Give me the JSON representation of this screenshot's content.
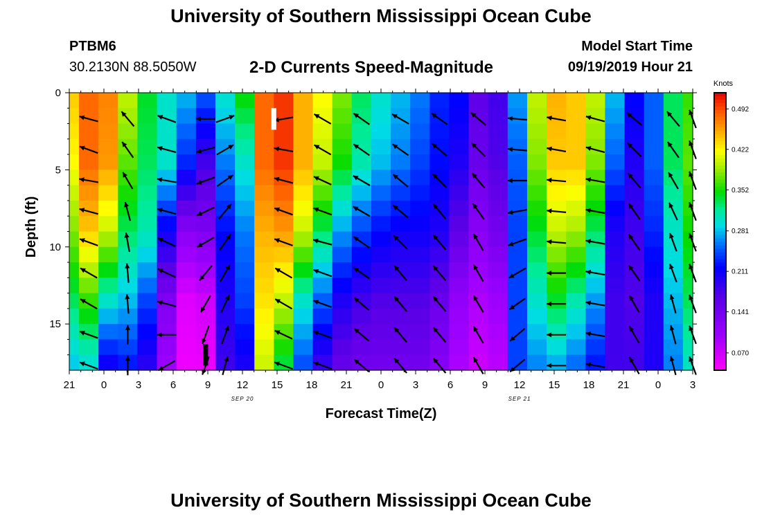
{
  "header": {
    "title": "University of Southern Mississippi Ocean Cube",
    "station_id": "PTBM6",
    "station_coords": "30.2130N 88.5050W",
    "chart_title": "2-D Currents Speed-Magnitude",
    "model_label": "Model Start Time",
    "model_time": "09/19/2019 Hour 21"
  },
  "footer": {
    "title": "University of Southern Mississippi Ocean Cube"
  },
  "chart_data": {
    "type": "heatmap",
    "title": "2-D Currents Speed-Magnitude",
    "xlabel": "Forecast Time(Z)",
    "ylabel": "Depth (ft)",
    "x_tick_labels": [
      "21",
      "0",
      "3",
      "6",
      "9",
      "12",
      "15",
      "18",
      "21",
      "0",
      "3",
      "6",
      "9",
      "12",
      "15",
      "18",
      "21",
      "0",
      "3"
    ],
    "x_date_labels": [
      {
        "label": "SEP 20",
        "at_tick": 5
      },
      {
        "label": "SEP 21",
        "at_tick": 13
      }
    ],
    "y_ticks": [
      0,
      5,
      10,
      15
    ],
    "ylim": [
      0,
      18
    ],
    "y_inverted": true,
    "colorbar": {
      "unit": "Knots",
      "tick_labels": [
        "0.492",
        "0.422",
        "0.352",
        "0.281",
        "0.211",
        "0.141",
        "0.070"
      ],
      "range": [
        0.04,
        0.52
      ]
    },
    "speed_columns": [
      {
        "t": 0,
        "s": [
          0.44,
          0.42,
          0.38,
          0.33,
          0.28
        ]
      },
      {
        "t": 1,
        "s": [
          0.48,
          0.48,
          0.44,
          0.36,
          0.29
        ]
      },
      {
        "t": 2,
        "s": [
          0.47,
          0.46,
          0.4,
          0.3,
          0.2
        ]
      },
      {
        "t": 3,
        "s": [
          0.4,
          0.37,
          0.33,
          0.28,
          0.22
        ]
      },
      {
        "t": 4,
        "s": [
          0.34,
          0.33,
          0.31,
          0.24,
          0.19
        ]
      },
      {
        "t": 5,
        "s": [
          0.3,
          0.3,
          0.21,
          0.13,
          0.1
        ]
      },
      {
        "t": 6,
        "s": [
          0.28,
          0.23,
          0.12,
          0.06,
          0.05
        ]
      },
      {
        "t": 7,
        "s": [
          0.25,
          0.18,
          0.13,
          0.07,
          0.05
        ]
      },
      {
        "t": 8,
        "s": [
          0.3,
          0.26,
          0.22,
          0.2,
          0.18
        ]
      },
      {
        "t": 9,
        "s": [
          0.35,
          0.3,
          0.26,
          0.24,
          0.2
        ]
      },
      {
        "t": 10,
        "s": [
          0.48,
          0.48,
          0.45,
          0.43,
          0.4
        ]
      },
      {
        "t": 11,
        "s": [
          0.5,
          0.5,
          0.46,
          0.4,
          0.33
        ]
      },
      {
        "t": 12,
        "s": [
          0.45,
          0.45,
          0.4,
          0.3,
          0.24
        ]
      },
      {
        "t": 13,
        "s": [
          0.42,
          0.4,
          0.33,
          0.25,
          0.18
        ]
      },
      {
        "t": 14,
        "s": [
          0.38,
          0.35,
          0.27,
          0.2,
          0.15
        ]
      },
      {
        "t": 15,
        "s": [
          0.33,
          0.31,
          0.24,
          0.18,
          0.14
        ]
      },
      {
        "t": 16,
        "s": [
          0.3,
          0.28,
          0.22,
          0.17,
          0.14
        ]
      },
      {
        "t": 17,
        "s": [
          0.28,
          0.26,
          0.21,
          0.17,
          0.14
        ]
      },
      {
        "t": 18,
        "s": [
          0.26,
          0.24,
          0.21,
          0.17,
          0.14
        ]
      },
      {
        "t": 19,
        "s": [
          0.23,
          0.22,
          0.2,
          0.15,
          0.12
        ]
      },
      {
        "t": 20,
        "s": [
          0.22,
          0.2,
          0.16,
          0.11,
          0.09
        ]
      },
      {
        "t": 21,
        "s": [
          0.16,
          0.15,
          0.12,
          0.09,
          0.07
        ]
      },
      {
        "t": 22,
        "s": [
          0.18,
          0.17,
          0.14,
          0.1,
          0.08
        ]
      },
      {
        "t": 23,
        "s": [
          0.27,
          0.25,
          0.24,
          0.24,
          0.24
        ]
      },
      {
        "t": 24,
        "s": [
          0.4,
          0.38,
          0.34,
          0.3,
          0.26
        ]
      },
      {
        "t": 25,
        "s": [
          0.45,
          0.44,
          0.4,
          0.34,
          0.27
        ]
      },
      {
        "t": 26,
        "s": [
          0.44,
          0.44,
          0.39,
          0.31,
          0.25
        ]
      },
      {
        "t": 27,
        "s": [
          0.4,
          0.38,
          0.33,
          0.27,
          0.22
        ]
      },
      {
        "t": 28,
        "s": [
          0.28,
          0.25,
          0.2,
          0.18,
          0.18
        ]
      },
      {
        "t": 29,
        "s": [
          0.22,
          0.2,
          0.18,
          0.17,
          0.18
        ]
      },
      {
        "t": 30,
        "s": [
          0.25,
          0.25,
          0.23,
          0.2,
          0.2
        ]
      },
      {
        "t": 31,
        "s": [
          0.33,
          0.33,
          0.3,
          0.28,
          0.26
        ]
      },
      {
        "t": 32,
        "s": [
          0.36,
          0.37,
          0.35,
          0.33,
          0.3
        ]
      }
    ],
    "vector_rows_depth": [
      1.7,
      3.7,
      5.7,
      7.7,
      9.7,
      11.7,
      13.7,
      15.7,
      17.7
    ],
    "vector_columns": [
      {
        "t": 1,
        "dir": [
          285,
          290,
          280,
          285,
          290,
          300,
          300,
          290,
          290
        ]
      },
      {
        "t": 3,
        "dir": [
          320,
          325,
          330,
          345,
          350,
          355,
          355,
          360,
          360
        ]
      },
      {
        "t": 5,
        "dir": [
          290,
          285,
          280,
          285,
          295,
          295,
          285,
          270,
          240
        ]
      },
      {
        "t": 7,
        "dir": [
          270,
          255,
          250,
          245,
          240,
          220,
          210,
          200,
          200
        ]
      },
      {
        "t": 8,
        "dir": [
          70,
          60,
          55,
          40,
          35,
          30,
          25,
          20,
          15
        ]
      },
      {
        "t": 11,
        "dir": [
          260,
          280,
          285,
          290,
          290,
          300,
          300,
          295,
          290
        ]
      },
      {
        "t": 13,
        "dir": [
          300,
          300,
          295,
          290,
          285,
          290,
          290,
          290,
          290
        ]
      },
      {
        "t": 15,
        "dir": [
          305,
          305,
          300,
          300,
          305,
          305,
          310,
          310,
          310
        ]
      },
      {
        "t": 17,
        "dir": [
          300,
          305,
          310,
          310,
          315,
          320,
          320,
          320,
          320
        ]
      },
      {
        "t": 19,
        "dir": [
          305,
          310,
          315,
          320,
          320,
          320,
          320,
          320,
          320
        ]
      },
      {
        "t": 21,
        "dir": [
          310,
          315,
          320,
          325,
          330,
          330,
          330,
          330,
          330
        ]
      },
      {
        "t": 23,
        "dir": [
          275,
          275,
          270,
          260,
          250,
          240,
          235,
          230,
          230
        ]
      },
      {
        "t": 25,
        "dir": [
          280,
          280,
          275,
          275,
          275,
          270,
          270,
          270,
          270
        ]
      },
      {
        "t": 27,
        "dir": [
          285,
          285,
          280,
          280,
          280,
          280,
          280,
          280,
          280
        ]
      },
      {
        "t": 29,
        "dir": [
          310,
          315,
          320,
          325,
          325,
          325,
          330,
          330,
          330
        ]
      },
      {
        "t": 31,
        "dir": [
          320,
          325,
          330,
          335,
          340,
          340,
          345,
          345,
          345
        ]
      },
      {
        "t": 32,
        "dir": [
          340,
          340,
          340,
          340,
          340,
          340,
          340,
          340,
          340
        ]
      }
    ],
    "markers": [
      {
        "color": "#ffffff",
        "t": 10.5,
        "depth_from": 1.0,
        "depth_to": 2.4
      },
      {
        "color": "#000000",
        "t": 7.0,
        "depth_from": 16.3,
        "depth_to": 17.7
      }
    ]
  }
}
